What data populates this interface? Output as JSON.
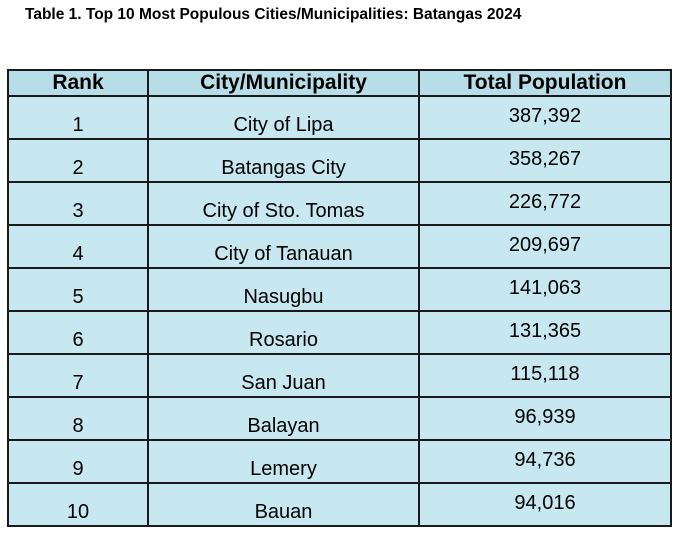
{
  "title": "Table 1. Top 10 Most Populous Cities/Municipalities: Batangas 2024",
  "chart_data": {
    "type": "table",
    "title": "Table 1. Top 10 Most Populous Cities/Municipalities: Batangas 2024",
    "columns": [
      "Rank",
      "City/Municipality",
      "Total Population"
    ],
    "rows": [
      {
        "rank": "1",
        "city": "City of Lipa",
        "population": "387,392"
      },
      {
        "rank": "2",
        "city": "Batangas City",
        "population": "358,267"
      },
      {
        "rank": "3",
        "city": "City of Sto. Tomas",
        "population": "226,772"
      },
      {
        "rank": "4",
        "city": "City of Tanauan",
        "population": "209,697"
      },
      {
        "rank": "5",
        "city": "Nasugbu",
        "population": "141,063"
      },
      {
        "rank": "6",
        "city": "Rosario",
        "population": "131,365"
      },
      {
        "rank": "7",
        "city": "San Juan",
        "population": "115,118"
      },
      {
        "rank": "8",
        "city": "Balayan",
        "population": "96,939"
      },
      {
        "rank": "9",
        "city": "Lemery",
        "population": "94,736"
      },
      {
        "rank": "10",
        "city": "Bauan",
        "population": "94,016"
      }
    ],
    "colors": {
      "header_bg": "#b6dde8",
      "cell_bg": "#c7e7f1",
      "border": "#1a1a1a"
    }
  }
}
